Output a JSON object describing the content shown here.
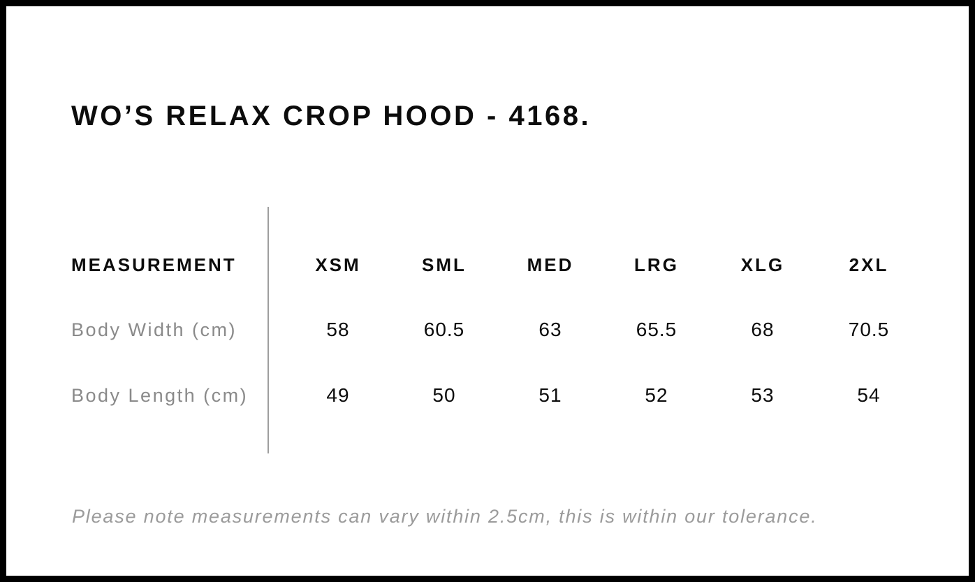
{
  "page": {
    "title": "WO’S RELAX CROP HOOD - 4168.",
    "tolerance_note": "Please note measurements can vary within 2.5cm, this is within our tolerance."
  },
  "size_chart": {
    "measurement_header": "MEASUREMENT",
    "sizes": [
      "XSM",
      "SML",
      "MED",
      "LRG",
      "XLG",
      "2XL"
    ],
    "rows": [
      {
        "label": "Body Width (cm)",
        "values": [
          "58",
          "60.5",
          "63",
          "65.5",
          "68",
          "70.5"
        ]
      },
      {
        "label": "Body Length (cm)",
        "values": [
          "49",
          "50",
          "51",
          "52",
          "53",
          "54"
        ]
      }
    ]
  },
  "colors": {
    "background": "#ffffff",
    "border": "#000000",
    "text_primary": "#0c0c0c",
    "text_muted": "#8a8a8a",
    "note_text": "#9b9b9b",
    "divider": "#9e9e9e"
  }
}
